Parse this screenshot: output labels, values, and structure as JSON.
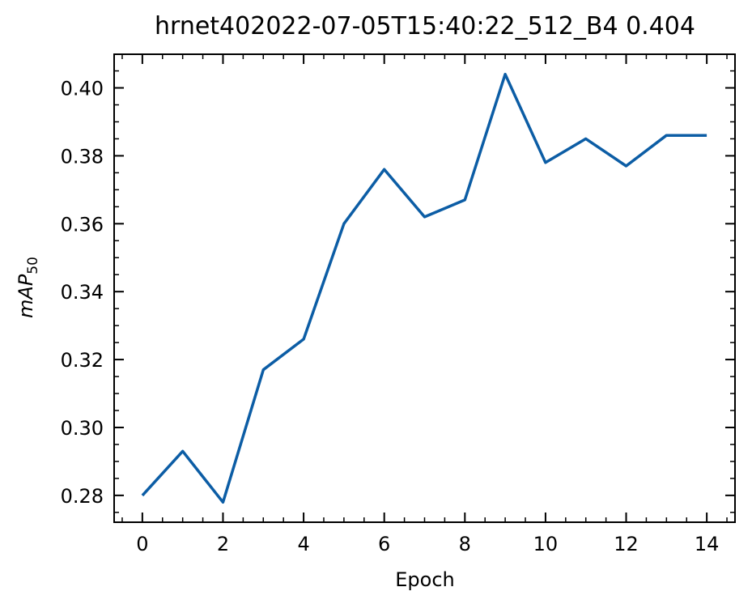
{
  "chart_data": {
    "type": "line",
    "title": "hrnet402022-07-05T15:40:22_512_B4 0.404",
    "xlabel": "Epoch",
    "ylabel": {
      "main": "mAP",
      "subscript": "50"
    },
    "x": [
      0,
      1,
      2,
      3,
      4,
      5,
      6,
      7,
      8,
      9,
      10,
      11,
      12,
      13,
      14
    ],
    "series": [
      {
        "values": [
          0.28,
          0.293,
          0.278,
          0.317,
          0.326,
          0.36,
          0.376,
          0.362,
          0.367,
          0.404,
          0.378,
          0.385,
          0.377,
          0.386,
          0.386
        ],
        "color": "#0c5da5"
      }
    ],
    "xlim": [
      -0.7,
      14.7
    ],
    "ylim": [
      0.2721,
      0.4099
    ],
    "xticks": [
      0,
      2,
      4,
      6,
      8,
      10,
      12,
      14
    ],
    "xtick_labels": [
      "0",
      "2",
      "4",
      "6",
      "8",
      "10",
      "12",
      "14"
    ],
    "yticks": [
      0.28,
      0.3,
      0.32,
      0.34,
      0.36,
      0.38,
      0.4
    ],
    "ytick_labels": [
      "0.28",
      "0.30",
      "0.32",
      "0.34",
      "0.36",
      "0.38",
      "0.40"
    ],
    "grid": false,
    "tick_direction": "in"
  }
}
